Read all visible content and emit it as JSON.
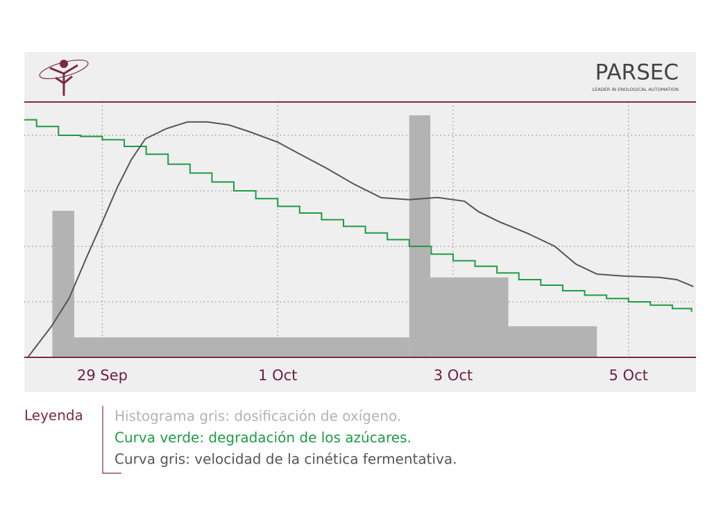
{
  "header": {
    "brand": "PARSEC",
    "tagline": "LEADER IN ENOLOGICAL AUTOMATION"
  },
  "chart_data": {
    "type": "combo",
    "xlim": [
      -0.89,
      6.77
    ],
    "xticks": [
      {
        "value": 0,
        "label": "29 Sep"
      },
      {
        "value": 2,
        "label": "1 Oct"
      },
      {
        "value": 4,
        "label": "3 Oct"
      },
      {
        "value": 6,
        "label": "5 Oct"
      }
    ],
    "ylim": [
      0,
      115
    ],
    "ygrid": [
      25,
      50,
      75,
      100
    ],
    "legend_title": "Leyenda",
    "series": [
      {
        "name": "Histograma gris: dosificación de oxígeno.",
        "type": "histogram",
        "color": "#b3b3b3",
        "bins": [
          -0.57,
          -0.32,
          3.5,
          3.74,
          4.63,
          5.64
        ],
        "values": [
          66,
          9,
          109,
          36,
          14
        ]
      },
      {
        "name": "Curva verde: degradación de los azúcares.",
        "type": "line",
        "step": true,
        "color": "#1e9b45",
        "x": [
          -0.89,
          -0.75,
          -0.5,
          -0.25,
          0,
          0.25,
          0.5,
          0.75,
          1,
          1.25,
          1.5,
          1.75,
          2,
          2.25,
          2.5,
          2.75,
          3,
          3.25,
          3.5,
          3.75,
          4,
          4.25,
          4.5,
          4.75,
          5,
          5.25,
          5.5,
          5.75,
          6,
          6.25,
          6.5,
          6.72
        ],
        "values": [
          107,
          104,
          100,
          99.5,
          98,
          95,
          91.5,
          87,
          83,
          79,
          75,
          71.5,
          68,
          65,
          62,
          59,
          56,
          53,
          50,
          46.5,
          43.5,
          41,
          38,
          35,
          32.5,
          30,
          28,
          26.5,
          25,
          23.5,
          22,
          20.5
        ]
      },
      {
        "name": "Curva gris: velocidad de la cinética fermentativa.",
        "type": "line",
        "step": false,
        "color": "#555555",
        "x": [
          -0.85,
          -0.58,
          -0.38,
          -0.18,
          0,
          0.17,
          0.33,
          0.49,
          0.73,
          0.97,
          1.2,
          1.44,
          1.68,
          2,
          2.23,
          2.55,
          2.87,
          3.18,
          3.5,
          3.82,
          4.13,
          4.29,
          4.53,
          4.84,
          5.16,
          5.4,
          5.64,
          5.95,
          6.35,
          6.55,
          6.74
        ],
        "values": [
          0,
          14,
          26.5,
          45,
          61,
          76.5,
          89,
          98.4,
          103,
          106,
          106,
          104.7,
          101.6,
          96.9,
          92,
          85.3,
          78,
          71.9,
          71,
          72,
          70.3,
          65.6,
          61,
          56,
          50,
          42,
          37.5,
          36.6,
          36,
          35,
          31.9
        ]
      }
    ]
  }
}
